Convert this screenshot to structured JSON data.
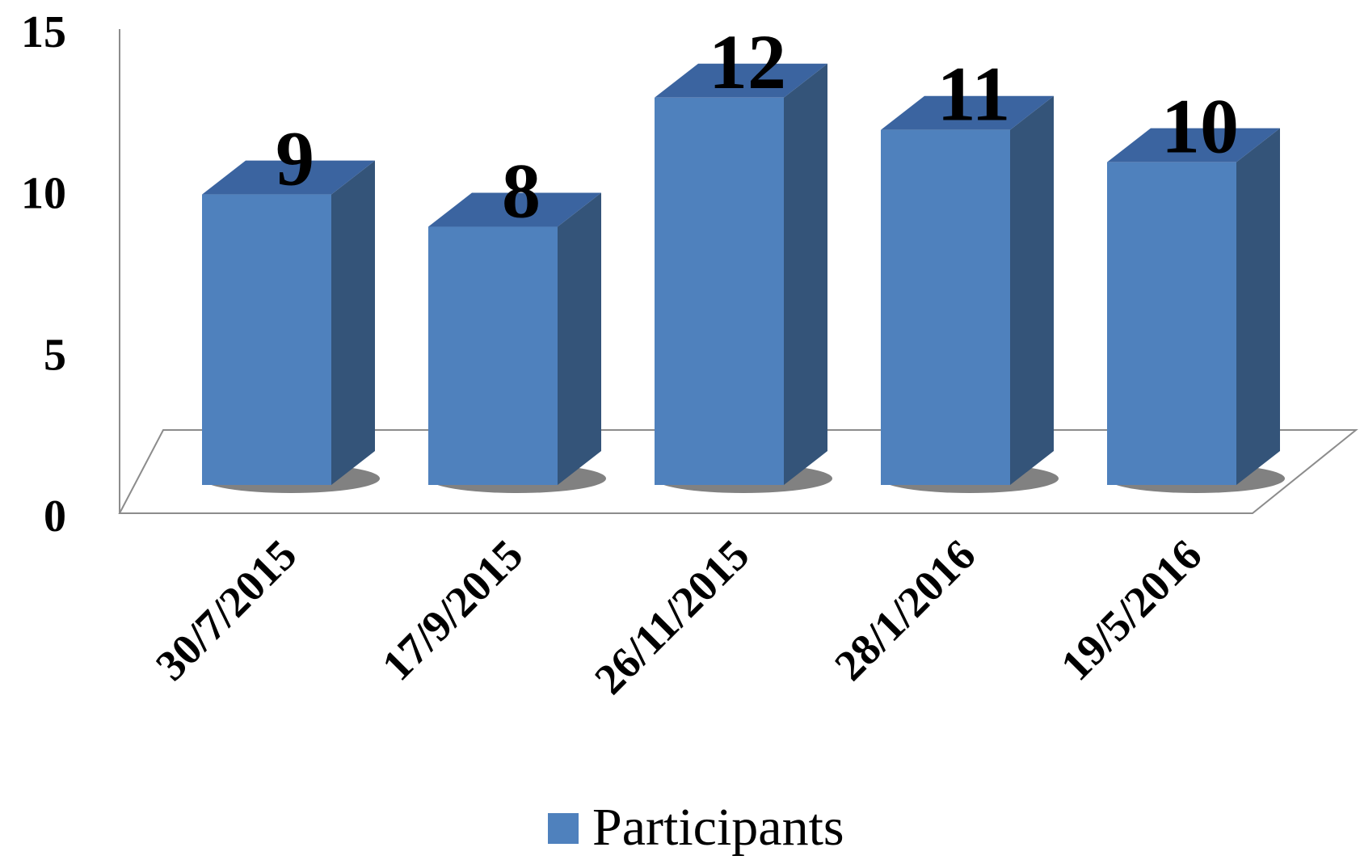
{
  "chart_data": {
    "type": "bar",
    "style": "3d-column",
    "title": "",
    "xlabel": "",
    "ylabel": "",
    "categories": [
      "30/7/2015",
      "17/9/2015",
      "26/11/2015",
      "28/1/2016",
      "19/5/2016"
    ],
    "series": [
      {
        "name": "Participants",
        "values": [
          9,
          8,
          12,
          11,
          10
        ],
        "color": "#4f81bd",
        "side_color": "#345479",
        "top_color": "#3b64a0"
      }
    ],
    "y_ticks": [
      0,
      5,
      10,
      15
    ],
    "ylim": [
      0,
      15
    ],
    "grid": false,
    "legend_position": "bottom",
    "data_labels": true
  }
}
